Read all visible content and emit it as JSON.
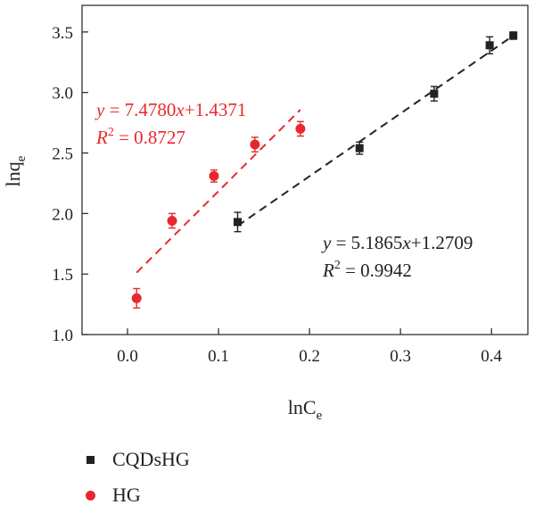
{
  "chart_data": {
    "type": "scatter",
    "xlabel_main": "lnC",
    "xlabel_sub": "e",
    "ylabel_main": "lnq",
    "ylabel_sub": "e",
    "xlim": [
      -0.05,
      0.44
    ],
    "ylim": [
      1.0,
      3.72
    ],
    "xticks": [
      0.0,
      0.1,
      0.2,
      0.3,
      0.4
    ],
    "xtick_labels": [
      "0.0",
      "0.1",
      "0.2",
      "0.3",
      "0.4"
    ],
    "yticks": [
      1.0,
      1.5,
      2.0,
      2.5,
      3.0,
      3.5
    ],
    "ytick_labels": [
      "1.0",
      "1.5",
      "2.0",
      "2.5",
      "3.0",
      "3.5"
    ],
    "series": [
      {
        "name": "CQDsHG",
        "color": "#222222",
        "marker": "square",
        "x": [
          0.121,
          0.255,
          0.337,
          0.398,
          0.424
        ],
        "y": [
          1.93,
          2.54,
          2.99,
          3.39,
          3.47
        ],
        "yerr": [
          0.08,
          0.05,
          0.06,
          0.07,
          0.03
        ],
        "fit": {
          "x_range": [
            0.121,
            0.424
          ],
          "slope": 5.1865,
          "intercept": 1.2709,
          "eq_y": "y",
          "eq_rhs": " = 5.1865",
          "eq_x": "x",
          "eq_tail": "+1.2709",
          "r2_r": "R",
          "r2_exp": "2",
          "r2_rhs": " = 0.9942"
        }
      },
      {
        "name": "HG",
        "color": "#e8282e",
        "marker": "circle",
        "x": [
          0.01,
          0.049,
          0.095,
          0.14,
          0.19
        ],
        "y": [
          1.3,
          1.94,
          2.31,
          2.57,
          2.7
        ],
        "yerr": [
          0.08,
          0.06,
          0.05,
          0.06,
          0.06
        ],
        "fit": {
          "x_range": [
            0.01,
            0.19
          ],
          "slope": 7.478,
          "intercept": 1.4371,
          "eq_y": "y",
          "eq_rhs": " = 7.4780",
          "eq_x": "x",
          "eq_tail": "+1.4371",
          "r2_r": "R",
          "r2_exp": "2",
          "r2_rhs": " = 0.8727"
        }
      }
    ]
  }
}
